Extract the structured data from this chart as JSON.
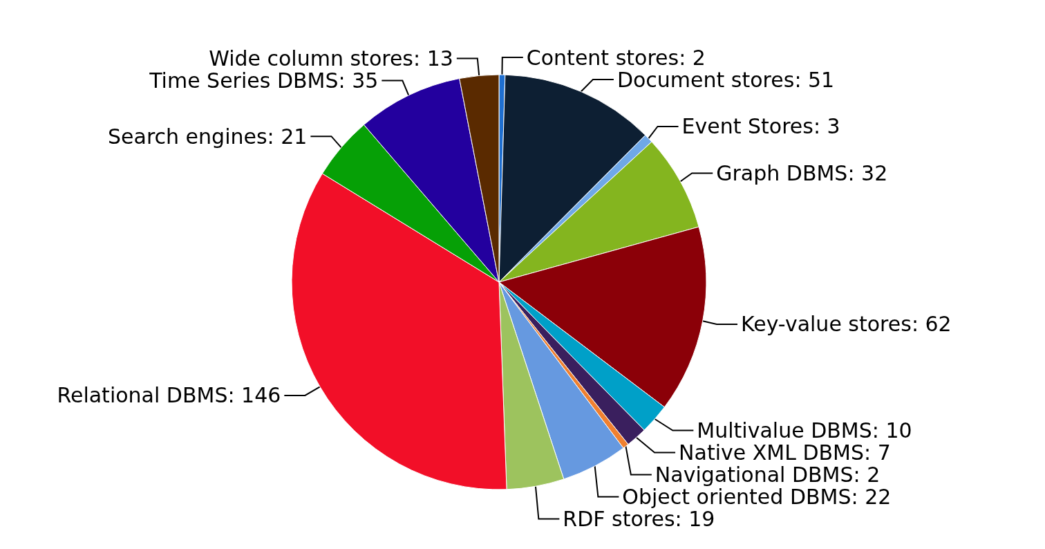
{
  "chart_data": {
    "type": "pie",
    "categories": [
      null,
      null,
      null,
      null,
      null,
      null,
      null,
      null,
      null,
      null,
      null,
      null,
      null,
      null
    ],
    "values": [
      2,
      51,
      3,
      32,
      62,
      10,
      7,
      2,
      22,
      19,
      146,
      21,
      35,
      13
    ],
    "value_labels": [
      "Content stores: 2",
      "Document stores: 51",
      "Event Stores: 3",
      "Graph DBMS: 32",
      "Key-value stores: 62",
      "Multivalue DBMS: 10",
      "Native XML DBMS: 7",
      "Navigational DBMS: 2",
      "Object oriented DBMS: 22",
      "RDF stores: 19",
      "Relational DBMS: 146",
      "Search engines: 21",
      "Time Series DBMS: 35",
      "Wide column stores: 13"
    ],
    "colors": [
      "#1f6fd0",
      "#0d1f33",
      "#6fa8e8",
      "#84b51f",
      "#8b0008",
      "#00a0c8",
      "#3a1f5e",
      "#f08030",
      "#6699e0",
      "#9dc35e",
      "#f20f28",
      "#06a006",
      "#23009e",
      "#5a2a00"
    ]
  }
}
